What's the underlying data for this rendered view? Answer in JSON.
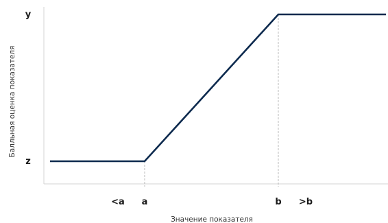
{
  "chart_data": {
    "type": "line",
    "title": "",
    "xlabel": "Значение показателя",
    "ylabel": "Балльная оценка показателя",
    "grid": false,
    "legend": "none",
    "x_ticks": [
      "<a",
      "a",
      "b",
      ">b"
    ],
    "y_ticks": [
      "z",
      "y"
    ],
    "series": [
      {
        "points": [
          {
            "x": "<a",
            "y": "z"
          },
          {
            "x": "a",
            "y": "z"
          },
          {
            "x": "b",
            "y": "y"
          },
          {
            "x": ">b",
            "y": "y"
          }
        ]
      }
    ],
    "reference_lines": [
      "a",
      "b"
    ]
  },
  "colors": {
    "line": "#0d2a4e",
    "axis": "#d3d3d3",
    "ref_line": "#aaaaaa",
    "text": "#1a1a1a"
  }
}
